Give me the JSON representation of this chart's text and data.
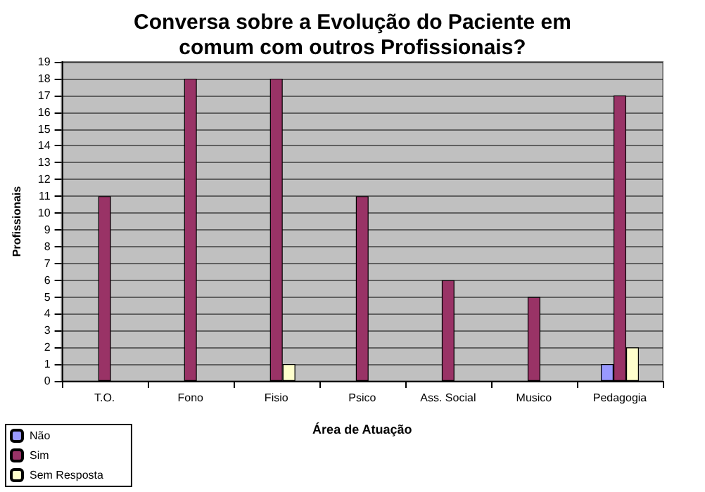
{
  "chart_data": {
    "type": "bar",
    "title": "Conversa sobre a Evolução do Paciente em\ncomum com outros Profissionais?",
    "xlabel": "Área de Atuação",
    "ylabel": "Profissionais",
    "categories": [
      "T.O.",
      "Fono",
      "Fisio",
      "Psico",
      "Ass. Social",
      "Musico",
      "Pedagogia"
    ],
    "series": [
      {
        "name": "Não",
        "color": "#9999ff",
        "values": [
          0,
          0,
          0,
          0,
          0,
          0,
          1
        ]
      },
      {
        "name": "Sim",
        "color": "#993366",
        "values": [
          11,
          18,
          18,
          11,
          6,
          5,
          17
        ]
      },
      {
        "name": "Sem Resposta",
        "color": "#ffffcc",
        "values": [
          0,
          0,
          1,
          0,
          0,
          0,
          2
        ]
      }
    ],
    "ylim": [
      0,
      19
    ],
    "yticks": [
      0,
      1,
      2,
      3,
      4,
      5,
      6,
      7,
      8,
      9,
      10,
      11,
      12,
      13,
      14,
      15,
      16,
      17,
      18,
      19
    ],
    "grid": "y",
    "legend": "bottom left"
  }
}
